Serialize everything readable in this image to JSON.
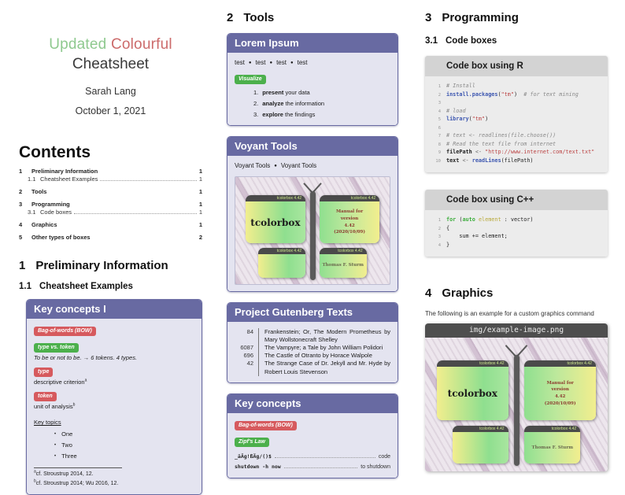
{
  "colors": {
    "box_header_purple": "#686aa2",
    "box_body_lavender": "#e4e4f0",
    "badge_red": "#d65a5e",
    "badge_green": "#4cb04c",
    "title_green": "#8fc98f",
    "title_red": "#cc6b6b",
    "code_header_gray": "#d3d3d3",
    "code_body_gray": "#ececec",
    "image_header_dark": "#4e4e4e"
  },
  "title_block": {
    "title_word1": "Updated",
    "title_word2": "Colourful",
    "title_line2": "Cheatsheet",
    "author": "Sarah Lang",
    "date": "October 1, 2021"
  },
  "contents": {
    "heading": "Contents",
    "entries": [
      {
        "num": "1",
        "label": "Preliminary Information",
        "page": "1"
      },
      {
        "num": "1.1",
        "label": "Cheatsheet Examples",
        "page": "1"
      },
      {
        "num": "2",
        "label": "Tools",
        "page": "1"
      },
      {
        "num": "3",
        "label": "Programming",
        "page": "1"
      },
      {
        "num": "3.1",
        "label": "Code boxes",
        "page": "1"
      },
      {
        "num": "4",
        "label": "Graphics",
        "page": "1"
      },
      {
        "num": "5",
        "label": "Other types of boxes",
        "page": "2"
      }
    ]
  },
  "section1": {
    "num": "1",
    "title": "Preliminary Information",
    "sub_num": "1.1",
    "sub_title": "Cheatsheet Examples"
  },
  "key_concepts_box_1": {
    "title": "Key concepts I",
    "badge_bow": "Bag-of-words (BOW)",
    "badge_type_vs_token": "type vs. token",
    "type_vs_token_note": "To be or not to be. → 6 tokens. 4 types.",
    "badge_type": "type",
    "type_def": "descriptive criterion",
    "type_def_fn_mark": "a",
    "badge_token": "token",
    "token_def": "unit of analysis",
    "token_def_fn_mark": "b",
    "key_topics_heading": "Key topics",
    "bullet": "•",
    "topics": [
      "One",
      "Two",
      "Three"
    ],
    "footnotes": [
      {
        "mark": "a",
        "text": "cf. Stroustrup 2014, 12."
      },
      {
        "mark": "b",
        "text": "cf. Stroustrup 2014; Wu 2016, 12."
      }
    ]
  },
  "section2": {
    "num": "2",
    "title": "Tools"
  },
  "lorem_box": {
    "title": "Lorem Ipsum",
    "separator": "●",
    "test_items": [
      "test",
      "test",
      "test",
      "test"
    ],
    "badge_visualize": "Visualize",
    "steps": [
      {
        "num": "1.",
        "bold": "present",
        "rest": " your data"
      },
      {
        "num": "2.",
        "bold": "analyze",
        "rest": " the information"
      },
      {
        "num": "3.",
        "bold": "explore",
        "rest": " the findings"
      }
    ]
  },
  "voyant_box": {
    "title": "Voyant Tools",
    "item1": "Voyant Tools",
    "separator": "●",
    "item2": "Voyant Tools"
  },
  "gutenberg_box": {
    "title": "Project Gutenberg Texts",
    "rows": [
      {
        "id": "84",
        "text": "Frankenstein; Or, The Modern Prometheus by Mary Wollstonecraft Shelley"
      },
      {
        "id": "6087",
        "text": "The Vampyre; a Tale by John William Polidori"
      },
      {
        "id": "696",
        "text": "The Castle of Otranto by Horace Walpole"
      },
      {
        "id": "42",
        "text": "The Strange Case of Dr. Jekyll and Mr. Hyde by Robert Louis Stevenson"
      }
    ]
  },
  "key_concepts_box_2": {
    "title": "Key concepts",
    "badge_bow": "Bag-of-words (BOW)",
    "badge_zipf": "Zipf's Law",
    "entries": [
      {
        "code": "_äÄg!ßÄg/()$",
        "desc": "code"
      },
      {
        "code": "shutdown -h now",
        "desc": "to shutdown"
      }
    ]
  },
  "section3": {
    "num": "3",
    "title": "Programming",
    "sub_num": "3.1",
    "sub_title": "Code boxes"
  },
  "code_box_r": {
    "title": "Code box using R",
    "lines": [
      {
        "n": "1",
        "segs": [
          {
            "t": "# Install",
            "c": "com"
          }
        ]
      },
      {
        "n": "2",
        "segs": [
          {
            "t": "install.packages",
            "c": "fn"
          },
          {
            "t": "(",
            "c": "pl"
          },
          {
            "t": "\"tm\"",
            "c": "str"
          },
          {
            "t": ")",
            "c": "pl"
          },
          {
            "t": "  # for text mining",
            "c": "com"
          }
        ]
      },
      {
        "n": "3",
        "segs": []
      },
      {
        "n": "4",
        "segs": [
          {
            "t": "# load",
            "c": "com"
          }
        ]
      },
      {
        "n": "5",
        "segs": [
          {
            "t": "library",
            "c": "fn"
          },
          {
            "t": "(",
            "c": "pl"
          },
          {
            "t": "\"tm\"",
            "c": "str"
          },
          {
            "t": ")",
            "c": "pl"
          }
        ]
      },
      {
        "n": "6",
        "segs": []
      },
      {
        "n": "7",
        "segs": [
          {
            "t": "# text <- readlines(file.choose())",
            "c": "com"
          }
        ]
      },
      {
        "n": "8",
        "segs": [
          {
            "t": "# Read the text file from internet",
            "c": "com"
          }
        ]
      },
      {
        "n": "9",
        "segs": [
          {
            "t": "filePath",
            "c": "id"
          },
          {
            "t": " <- ",
            "c": "op"
          },
          {
            "t": "\"http://www.internet.com/text.txt\"",
            "c": "str"
          }
        ]
      },
      {
        "n": "10",
        "segs": [
          {
            "t": "text",
            "c": "id"
          },
          {
            "t": " <- ",
            "c": "op"
          },
          {
            "t": "readLines",
            "c": "fn"
          },
          {
            "t": "(filePath)",
            "c": "pl"
          }
        ]
      }
    ]
  },
  "code_box_cpp": {
    "title": "Code box using C++",
    "lines": [
      {
        "n": "1",
        "segs": [
          {
            "t": "for",
            "c": "kw"
          },
          {
            "t": " (",
            "c": "pl"
          },
          {
            "t": "auto",
            "c": "kw"
          },
          {
            "t": " ",
            "c": "pl"
          },
          {
            "t": "element",
            "c": "ident"
          },
          {
            "t": " : vector)",
            "c": "pl"
          }
        ]
      },
      {
        "n": "2",
        "segs": [
          {
            "t": "{",
            "c": "pl"
          }
        ]
      },
      {
        "n": "3",
        "segs": [
          {
            "t": "    sum += element;",
            "c": "pl"
          }
        ]
      },
      {
        "n": "4",
        "segs": [
          {
            "t": "}",
            "c": "pl"
          }
        ]
      }
    ]
  },
  "section4": {
    "num": "4",
    "title": "Graphics",
    "intro": "The following is an example for a custom graphics command"
  },
  "graphics_figure": {
    "filename": "img/example-image.png"
  },
  "tcolorbox_image": {
    "wing_header": "tcolorbox 4.42",
    "left_wing_label": "tcolorbox",
    "right_wing_lines": [
      "Manual for",
      "version",
      "4.42",
      "(2020/10/09)"
    ],
    "bottom_right_label": "Thomas F. Sturm"
  }
}
